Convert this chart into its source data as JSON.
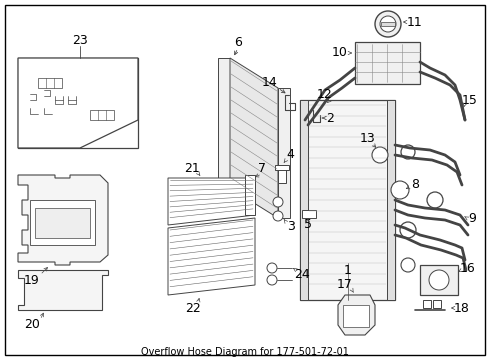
{
  "title": "Overflow Hose Diagram for 177-501-72-01",
  "background_color": "#ffffff",
  "line_color": "#444444",
  "figsize": [
    4.9,
    3.6
  ],
  "dpi": 100
}
